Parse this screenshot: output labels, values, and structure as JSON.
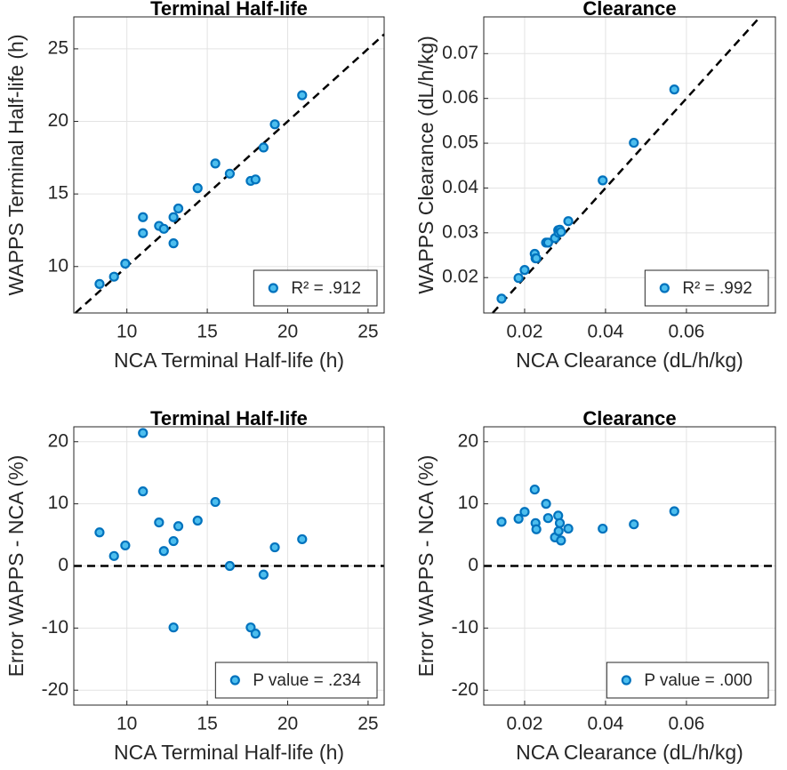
{
  "chart_data": [
    {
      "type": "scatter",
      "title": "Terminal Half-life",
      "x_label": "NCA Terminal Half-life (h)",
      "y_label": "WAPPS Terminal Half-life (h)",
      "x": [
        8.3,
        9.2,
        9.9,
        11.0,
        11.0,
        12.0,
        12.3,
        12.9,
        12.9,
        13.2,
        14.4,
        15.5,
        16.4,
        17.7,
        18.0,
        18.5,
        19.2,
        20.9
      ],
      "series": [
        {
          "name": "R² = .912",
          "color": "#0072bd",
          "values": [
            8.8,
            9.3,
            10.2,
            13.4,
            12.3,
            12.8,
            12.6,
            13.4,
            11.6,
            14.0,
            15.4,
            17.1,
            16.4,
            15.9,
            16.0,
            18.2,
            19.8,
            21.8
          ]
        }
      ],
      "xlim": [
        6.7,
        26
      ],
      "ylim": [
        6.8,
        27.2
      ],
      "xticks": [
        10,
        15,
        20,
        25
      ],
      "yticks": [
        10,
        15,
        20,
        25
      ],
      "grid": true,
      "reference_line": "identity",
      "legend": "bottom-right"
    },
    {
      "type": "scatter",
      "title": "Clearance",
      "x_label": "NCA Clearance (dL/h/kg)",
      "y_label": "WAPPS Clearance (dL/h/kg)",
      "x": [
        0.0143,
        0.0185,
        0.02,
        0.0225,
        0.0227,
        0.0229,
        0.0253,
        0.0258,
        0.0275,
        0.0283,
        0.0284,
        0.0287,
        0.029,
        0.0308,
        0.0393,
        0.047,
        0.057
      ],
      "series": [
        {
          "name": "R² = .992",
          "color": "#0072bd",
          "values": [
            0.0153,
            0.0199,
            0.0217,
            0.0253,
            0.0243,
            0.0243,
            0.0278,
            0.0278,
            0.0288,
            0.0306,
            0.03,
            0.0307,
            0.0302,
            0.0326,
            0.0417,
            0.0501,
            0.062
          ]
        }
      ],
      "xlim": [
        0.0099,
        0.082
      ],
      "ylim": [
        0.0121,
        0.0782
      ],
      "xticks": [
        0.02,
        0.04,
        0.06
      ],
      "yticks": [
        0.02,
        0.03,
        0.04,
        0.05,
        0.06,
        0.07
      ],
      "grid": true,
      "reference_line": "identity",
      "legend": "bottom-right"
    },
    {
      "type": "scatter",
      "title": "Terminal Half-life",
      "x_label": "NCA Terminal Half-life (h)",
      "y_label": "Error WAPPS - NCA (%)",
      "x": [
        8.3,
        9.2,
        9.9,
        11.0,
        11.0,
        12.0,
        12.3,
        12.9,
        12.9,
        13.2,
        14.4,
        15.5,
        16.4,
        17.7,
        18.0,
        18.5,
        19.2,
        20.9
      ],
      "series": [
        {
          "name": "P value = .234",
          "color": "#0072bd",
          "values": [
            5.4,
            1.6,
            3.3,
            21.4,
            12.0,
            7.0,
            2.4,
            4.0,
            -9.9,
            6.4,
            7.3,
            10.3,
            0,
            -9.9,
            -10.9,
            -1.4,
            3.0,
            4.3
          ]
        }
      ],
      "xlim": [
        6.7,
        26
      ],
      "ylim": [
        -22.4,
        22.4
      ],
      "xticks": [
        10,
        15,
        20,
        25
      ],
      "yticks": [
        -20,
        -10,
        0,
        10,
        20
      ],
      "grid": true,
      "reference_line": "zero",
      "legend": "bottom-right"
    },
    {
      "type": "scatter",
      "title": "Clearance",
      "x_label": "NCA Clearance (dL/h/kg)",
      "y_label": "Error WAPPS - NCA (%)",
      "x": [
        0.0143,
        0.0185,
        0.02,
        0.0225,
        0.0227,
        0.0229,
        0.0253,
        0.0258,
        0.0275,
        0.0283,
        0.0284,
        0.0287,
        0.029,
        0.0308,
        0.0393,
        0.047,
        0.057
      ],
      "series": [
        {
          "name": "P value = .000",
          "color": "#0072bd",
          "values": [
            7.1,
            7.6,
            8.7,
            12.3,
            6.9,
            5.9,
            10.0,
            7.7,
            4.6,
            8.1,
            5.6,
            6.9,
            4.1,
            6.0,
            6.0,
            6.7,
            8.8
          ]
        }
      ],
      "xlim": [
        0.0099,
        0.082
      ],
      "ylim": [
        -22.4,
        22.4
      ],
      "xticks": [
        0.02,
        0.04,
        0.06
      ],
      "yticks": [
        -20,
        -10,
        0,
        10,
        20
      ],
      "grid": true,
      "reference_line": "zero",
      "legend": "bottom-right"
    }
  ]
}
